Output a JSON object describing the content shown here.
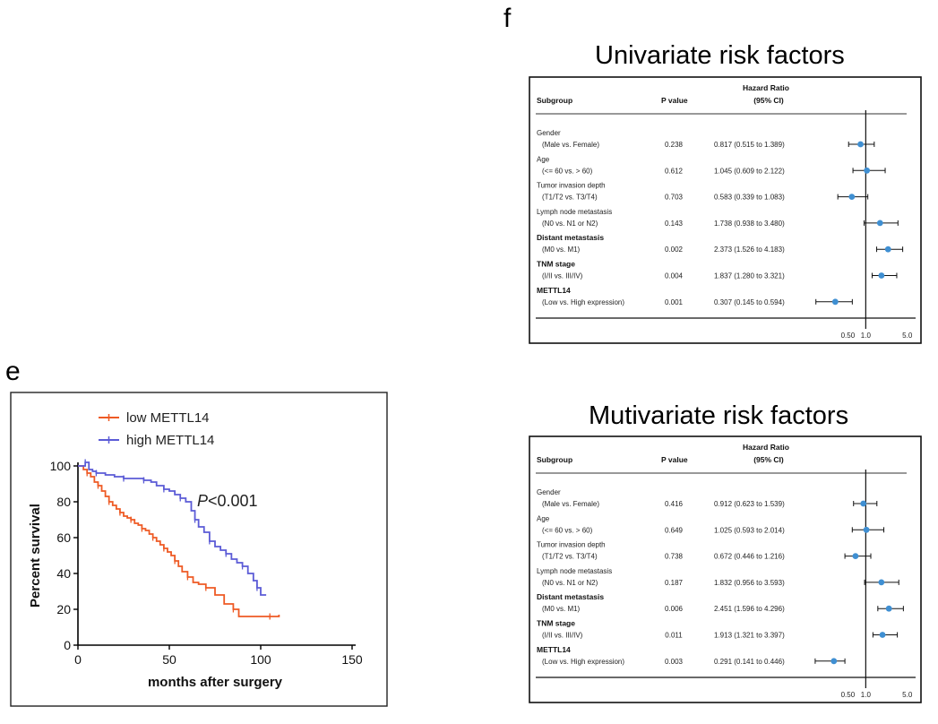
{
  "panels": {
    "e": "e",
    "f": "f"
  },
  "chart_data": [
    {
      "type": "line",
      "chart_id": "km",
      "title": "",
      "xlabel": "months after surgery",
      "ylabel": "Percent survival",
      "xlim": [
        0,
        150
      ],
      "ylim": [
        0,
        100
      ],
      "xticks": [
        0,
        50,
        100,
        150
      ],
      "yticks": [
        0,
        20,
        40,
        60,
        80,
        100
      ],
      "annotation": {
        "italic": "P",
        "rest": "<0.001"
      },
      "series": [
        {
          "name": "low METTL14",
          "color": "#ee5a24",
          "x": [
            0,
            3,
            5,
            7,
            9,
            11,
            13,
            15,
            17,
            19,
            21,
            23,
            25,
            27,
            29,
            31,
            33,
            35,
            37,
            39,
            41,
            43,
            45,
            47,
            49,
            51,
            53,
            55,
            57,
            60,
            63,
            66,
            70,
            75,
            80,
            85,
            88,
            95,
            105,
            110
          ],
          "y": [
            100,
            98,
            96,
            94,
            91,
            89,
            86,
            83,
            80,
            78,
            76,
            74,
            72,
            71,
            70,
            68,
            67,
            65,
            64,
            62,
            60,
            58,
            56,
            54,
            52,
            50,
            47,
            44,
            41,
            38,
            35,
            34,
            32,
            28,
            23,
            20,
            16,
            16,
            16,
            17
          ]
        },
        {
          "name": "high METTL14",
          "color": "#5b5bd6",
          "x": [
            0,
            2,
            4,
            6,
            8,
            10,
            15,
            20,
            25,
            30,
            33,
            36,
            40,
            43,
            47,
            50,
            53,
            56,
            59,
            62,
            64,
            66,
            69,
            72,
            75,
            78,
            81,
            84,
            87,
            90,
            93,
            96,
            98,
            100,
            103
          ],
          "y": [
            100,
            100,
            102,
            98,
            97,
            96,
            95,
            94,
            93,
            93,
            93,
            92,
            91,
            89,
            87,
            86,
            84,
            82,
            80,
            75,
            70,
            66,
            63,
            58,
            55,
            53,
            51,
            48,
            46,
            44,
            40,
            36,
            32,
            28,
            28
          ]
        }
      ]
    },
    {
      "type": "forest",
      "chart_id": "uni",
      "title": "Univariate risk factors",
      "headers": {
        "subgroup": "Subgroup",
        "pvalue": "P value",
        "hr_line1": "Hazard Ratio",
        "hr_line2": "(95% CI)"
      },
      "xscale": "log",
      "xticks": [
        {
          "value": 0.5,
          "label": "0.50"
        },
        {
          "value": 1.0,
          "label": "1.0"
        },
        {
          "value": 5.0,
          "label": "5.0"
        }
      ],
      "marker_color": "#3f8fd2",
      "rows": [
        {
          "name": "Gender",
          "bold": false,
          "detail": "(Male vs. Female)",
          "p": "0.238",
          "hr_text": "0.817 (0.515 to 1.389)",
          "hr": 0.817,
          "lo": 0.515,
          "hi": 1.389
        },
        {
          "name": "Age",
          "bold": false,
          "detail": "(<= 60 vs. > 60)",
          "p": "0.612",
          "hr_text": "1.045 (0.609 to 2.122)",
          "hr": 1.045,
          "lo": 0.609,
          "hi": 2.122
        },
        {
          "name": "Tumor invasion depth",
          "bold": false,
          "detail": "(T1/T2 vs. T3/T4)",
          "p": "0.703",
          "hr_text": "0.583 (0.339 to 1.083)",
          "hr": 0.583,
          "lo": 0.339,
          "hi": 1.083
        },
        {
          "name": "Lymph node metastasis",
          "bold": false,
          "detail": "(N0 vs. N1 or N2)",
          "p": "0.143",
          "hr_text": "1.738 (0.938 to 3.480)",
          "hr": 1.738,
          "lo": 0.938,
          "hi": 3.48
        },
        {
          "name": "Distant metastasis",
          "bold": true,
          "detail": "(M0 vs. M1)",
          "p": "0.002",
          "hr_text": "2.373 (1.526 to 4.183)",
          "hr": 2.373,
          "lo": 1.526,
          "hi": 4.183
        },
        {
          "name": "TNM stage",
          "bold": true,
          "detail": "(I/II vs. III/IV)",
          "p": "0.004",
          "hr_text": "1.837 (1.280 to 3.321)",
          "hr": 1.837,
          "lo": 1.28,
          "hi": 3.321
        },
        {
          "name": "METTL14",
          "bold": true,
          "detail": "(Low vs. High expression)",
          "p": "0.001",
          "hr_text": "0.307 (0.145 to 0.594)",
          "hr": 0.307,
          "lo": 0.145,
          "hi": 0.594
        }
      ]
    },
    {
      "type": "forest",
      "chart_id": "multi",
      "title": "Mutivariate risk factors",
      "headers": {
        "subgroup": "Subgroup",
        "pvalue": "P value",
        "hr_line1": "Hazard Ratio",
        "hr_line2": "(95% CI)"
      },
      "xscale": "log",
      "xticks": [
        {
          "value": 0.5,
          "label": "0.50"
        },
        {
          "value": 1.0,
          "label": "1.0"
        },
        {
          "value": 5.0,
          "label": "5.0"
        }
      ],
      "marker_color": "#3f8fd2",
      "rows": [
        {
          "name": "Gender",
          "bold": false,
          "detail": "(Male vs. Female)",
          "p": "0.416",
          "hr_text": "0.912 (0.623 to 1.539)",
          "hr": 0.912,
          "lo": 0.623,
          "hi": 1.539
        },
        {
          "name": "Age",
          "bold": false,
          "detail": "(<= 60 vs. > 60)",
          "p": "0.649",
          "hr_text": "1.025 (0.593 to 2.014)",
          "hr": 1.025,
          "lo": 0.593,
          "hi": 2.014
        },
        {
          "name": "Tumor invasion depth",
          "bold": false,
          "detail": "(T1/T2 vs. T3/T4)",
          "p": "0.738",
          "hr_text": "0.672 (0.446 to 1.216)",
          "hr": 0.672,
          "lo": 0.446,
          "hi": 1.216
        },
        {
          "name": "Lymph node metastasis",
          "bold": false,
          "detail": "(N0 vs. N1 or N2)",
          "p": "0.187",
          "hr_text": "1.832 (0.956 to 3.593)",
          "hr": 1.832,
          "lo": 0.956,
          "hi": 3.593
        },
        {
          "name": "Distant metastasis",
          "bold": true,
          "detail": "(M0 vs. M1)",
          "p": "0.006",
          "hr_text": "2.451 (1.596 to 4.296)",
          "hr": 2.451,
          "lo": 1.596,
          "hi": 4.296
        },
        {
          "name": "TNM stage",
          "bold": true,
          "detail": "(I/II vs. III/IV)",
          "p": "0.011",
          "hr_text": "1.913 (1.321 to 3.397)",
          "hr": 1.913,
          "lo": 1.321,
          "hi": 3.397
        },
        {
          "name": "METTL14",
          "bold": true,
          "detail": "(Low vs. High expression)",
          "p": "0.003",
          "hr_text": "0.291 (0.141 to 0.446)",
          "hr": 0.291,
          "lo": 0.141,
          "hi": 0.446
        }
      ]
    }
  ]
}
